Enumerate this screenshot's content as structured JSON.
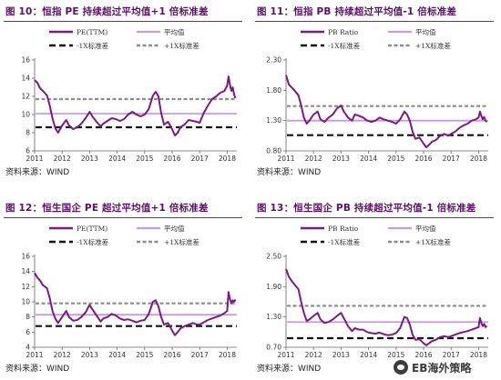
{
  "panels": [
    {
      "title": "图 10：恒指 PE 持续超过平均值+1 倍标准差",
      "source": "资料来源：WIND",
      "legend": {
        "series": "PE(TTM)",
        "mean": "平均值",
        "minus1sd": "-1X标准差",
        "plus1sd": "+1X标准差"
      }
    },
    {
      "title": "图 11：恒指 PB 持续超过平均值-1 倍标准差",
      "source": "资料来源：WIND",
      "legend": {
        "series": "PB Ratio",
        "mean": "平均值",
        "minus1sd": "-1X标准差",
        "plus1sd": "+1X标准差"
      }
    },
    {
      "title": "图 12：恒生国企 PE 超过平均值+1 倍标准差",
      "source": "资料来源：WIND",
      "legend": {
        "series": "PE(TTM)",
        "mean": "平均值",
        "minus1sd": "-1X标准差",
        "plus1sd": "+1X标准差"
      }
    },
    {
      "title": "图 13：恒生国企 PB 持续超过平均值-1 倍标准差",
      "source": "资料来源：WIND",
      "legend": {
        "series": "PB Ratio",
        "mean": "平均值",
        "minus1sd": "-1X标准差",
        "plus1sd": "+1X标准差"
      }
    }
  ],
  "watermark": "EB海外策略",
  "colors": {
    "series": "#7b1a80",
    "mean": "#c89be0",
    "minus1sd": "#111111",
    "plus1sd": "#8c8c8c",
    "title": "#5a1163"
  },
  "chart_data": [
    {
      "type": "line",
      "title": "",
      "x_ticks": [
        "2011",
        "2012",
        "2013",
        "2014",
        "2015",
        "2016",
        "2017",
        "2018"
      ],
      "xlim": [
        2011.0,
        2018.35
      ],
      "ylim": [
        6,
        16
      ],
      "y_ticks": [
        6,
        8,
        10,
        12,
        14,
        16
      ],
      "mean": 10.1,
      "minus1sd": 8.6,
      "plus1sd": 11.7,
      "series": [
        {
          "name": "PE(TTM)",
          "x": [
            2011.0,
            2011.1,
            2011.2,
            2011.3,
            2011.45,
            2011.55,
            2011.65,
            2011.75,
            2011.85,
            2012.0,
            2012.15,
            2012.25,
            2012.4,
            2012.55,
            2012.7,
            2012.85,
            2013.0,
            2013.1,
            2013.25,
            2013.4,
            2013.5,
            2013.65,
            2013.8,
            2013.95,
            2014.1,
            2014.25,
            2014.4,
            2014.55,
            2014.7,
            2014.85,
            2015.0,
            2015.15,
            2015.3,
            2015.4,
            2015.5,
            2015.6,
            2015.7,
            2015.85,
            2016.0,
            2016.1,
            2016.2,
            2016.3,
            2016.45,
            2016.6,
            2016.75,
            2016.9,
            2017.0,
            2017.15,
            2017.3,
            2017.45,
            2017.6,
            2017.75,
            2017.9,
            2018.0,
            2018.05,
            2018.1,
            2018.15,
            2018.2,
            2018.25,
            2018.3
          ],
          "y": [
            13.8,
            13.5,
            12.9,
            12.6,
            12.1,
            11.0,
            9.6,
            8.5,
            8.0,
            8.8,
            9.4,
            8.8,
            8.4,
            8.6,
            9.0,
            9.6,
            10.3,
            9.8,
            9.2,
            8.7,
            9.0,
            9.3,
            9.6,
            9.5,
            9.3,
            9.5,
            10.0,
            10.3,
            10.0,
            9.8,
            10.0,
            10.6,
            12.1,
            12.5,
            12.0,
            10.2,
            8.9,
            9.2,
            8.4,
            7.7,
            8.0,
            8.6,
            8.9,
            9.4,
            9.3,
            9.2,
            9.1,
            10.2,
            11.0,
            11.7,
            12.0,
            12.4,
            12.6,
            13.2,
            14.2,
            13.3,
            12.6,
            13.0,
            12.2,
            11.8
          ]
        }
      ]
    },
    {
      "type": "line",
      "title": "",
      "x_ticks": [
        "2011",
        "2012",
        "2013",
        "2014",
        "2015",
        "2016",
        "2017",
        "2018"
      ],
      "xlim": [
        2011.0,
        2018.35
      ],
      "ylim": [
        0.8,
        2.3
      ],
      "y_ticks": [
        0.8,
        1.3,
        1.8,
        2.3
      ],
      "y_tick_labels": [
        "0.80",
        "1.30",
        "1.80",
        "2.30"
      ],
      "mean": 1.3,
      "minus1sd": 1.06,
      "plus1sd": 1.54,
      "series": [
        {
          "name": "PB Ratio",
          "x": [
            2011.0,
            2011.1,
            2011.2,
            2011.3,
            2011.45,
            2011.55,
            2011.65,
            2011.75,
            2011.85,
            2012.0,
            2012.15,
            2012.25,
            2012.4,
            2012.55,
            2012.7,
            2012.85,
            2013.0,
            2013.1,
            2013.25,
            2013.4,
            2013.5,
            2013.65,
            2013.8,
            2013.95,
            2014.1,
            2014.25,
            2014.4,
            2014.55,
            2014.7,
            2014.85,
            2015.0,
            2015.15,
            2015.3,
            2015.4,
            2015.5,
            2015.6,
            2015.7,
            2015.85,
            2016.0,
            2016.1,
            2016.2,
            2016.3,
            2016.45,
            2016.6,
            2016.75,
            2016.9,
            2017.0,
            2017.15,
            2017.3,
            2017.45,
            2017.6,
            2017.75,
            2017.9,
            2018.0,
            2018.05,
            2018.1,
            2018.15,
            2018.2,
            2018.25,
            2018.3
          ],
          "y": [
            2.05,
            1.9,
            1.85,
            1.8,
            1.72,
            1.55,
            1.35,
            1.25,
            1.3,
            1.4,
            1.45,
            1.32,
            1.28,
            1.35,
            1.4,
            1.5,
            1.55,
            1.45,
            1.35,
            1.3,
            1.4,
            1.38,
            1.35,
            1.3,
            1.28,
            1.3,
            1.35,
            1.32,
            1.3,
            1.28,
            1.25,
            1.32,
            1.45,
            1.4,
            1.3,
            1.12,
            1.0,
            1.02,
            0.92,
            0.86,
            0.9,
            0.95,
            0.98,
            1.05,
            1.08,
            1.05,
            1.08,
            1.12,
            1.18,
            1.22,
            1.25,
            1.3,
            1.32,
            1.35,
            1.45,
            1.38,
            1.32,
            1.36,
            1.3,
            1.28
          ]
        }
      ]
    },
    {
      "type": "line",
      "title": "",
      "x_ticks": [
        "2011",
        "2012",
        "2013",
        "2014",
        "2015",
        "2016",
        "2017",
        "2018"
      ],
      "xlim": [
        2011.0,
        2018.35
      ],
      "ylim": [
        4,
        16
      ],
      "y_ticks": [
        4,
        6,
        8,
        10,
        12,
        14,
        16
      ],
      "mean": 8.3,
      "minus1sd": 6.8,
      "plus1sd": 9.8,
      "series": [
        {
          "name": "PE(TTM)",
          "x": [
            2011.0,
            2011.1,
            2011.2,
            2011.3,
            2011.45,
            2011.55,
            2011.65,
            2011.75,
            2011.85,
            2012.0,
            2012.15,
            2012.25,
            2012.4,
            2012.55,
            2012.7,
            2012.85,
            2013.0,
            2013.1,
            2013.25,
            2013.4,
            2013.5,
            2013.65,
            2013.8,
            2013.95,
            2014.1,
            2014.25,
            2014.4,
            2014.55,
            2014.7,
            2014.85,
            2015.0,
            2015.15,
            2015.3,
            2015.4,
            2015.5,
            2015.6,
            2015.7,
            2015.85,
            2016.0,
            2016.1,
            2016.2,
            2016.3,
            2016.45,
            2016.6,
            2016.75,
            2016.9,
            2017.0,
            2017.15,
            2017.3,
            2017.45,
            2017.6,
            2017.75,
            2017.9,
            2018.0,
            2018.05,
            2018.1,
            2018.15,
            2018.2,
            2018.25,
            2018.3
          ],
          "y": [
            13.8,
            13.2,
            12.8,
            12.2,
            11.8,
            10.5,
            8.8,
            7.8,
            7.2,
            8.0,
            8.8,
            8.0,
            7.5,
            7.6,
            8.0,
            8.6,
            9.6,
            9.0,
            8.2,
            7.4,
            7.8,
            8.0,
            8.4,
            8.2,
            7.8,
            7.6,
            7.7,
            7.5,
            7.3,
            7.5,
            7.6,
            8.4,
            10.0,
            10.2,
            9.4,
            8.0,
            7.0,
            7.2,
            6.2,
            5.6,
            6.0,
            6.5,
            6.8,
            7.0,
            7.2,
            7.0,
            7.0,
            7.3,
            7.6,
            7.8,
            8.0,
            8.2,
            8.5,
            8.8,
            11.3,
            10.4,
            9.8,
            10.2,
            10.0,
            10.3
          ]
        }
      ]
    },
    {
      "type": "line",
      "title": "",
      "x_ticks": [
        "2011",
        "2012",
        "2013",
        "2014",
        "2015",
        "2016",
        "2017",
        "2018"
      ],
      "xlim": [
        2011.0,
        2018.35
      ],
      "ylim": [
        0.7,
        2.5
      ],
      "y_ticks": [
        0.7,
        1.3,
        1.9,
        2.5
      ],
      "y_tick_labels": [
        "0.70",
        "1.30",
        "1.90",
        "2.50"
      ],
      "mean": 1.2,
      "minus1sd": 0.88,
      "plus1sd": 1.52,
      "series": [
        {
          "name": "PB Ratio",
          "x": [
            2011.0,
            2011.1,
            2011.2,
            2011.3,
            2011.45,
            2011.55,
            2011.65,
            2011.75,
            2011.85,
            2012.0,
            2012.15,
            2012.25,
            2012.4,
            2012.55,
            2012.7,
            2012.85,
            2013.0,
            2013.1,
            2013.25,
            2013.4,
            2013.5,
            2013.65,
            2013.8,
            2013.95,
            2014.1,
            2014.25,
            2014.4,
            2014.55,
            2014.7,
            2014.85,
            2015.0,
            2015.15,
            2015.3,
            2015.4,
            2015.5,
            2015.6,
            2015.7,
            2015.85,
            2016.0,
            2016.1,
            2016.2,
            2016.3,
            2016.45,
            2016.6,
            2016.75,
            2016.9,
            2017.0,
            2017.15,
            2017.3,
            2017.45,
            2017.6,
            2017.75,
            2017.9,
            2018.0,
            2018.05,
            2018.1,
            2018.15,
            2018.2,
            2018.25,
            2018.3
          ],
          "y": [
            2.25,
            2.1,
            2.02,
            1.95,
            1.85,
            1.6,
            1.38,
            1.22,
            1.25,
            1.32,
            1.38,
            1.25,
            1.18,
            1.2,
            1.25,
            1.32,
            1.38,
            1.28,
            1.12,
            1.02,
            1.08,
            1.05,
            1.05,
            1.0,
            0.98,
            0.97,
            0.99,
            0.96,
            0.94,
            0.95,
            0.98,
            1.08,
            1.3,
            1.28,
            1.15,
            0.95,
            0.85,
            0.86,
            0.78,
            0.74,
            0.78,
            0.82,
            0.85,
            0.9,
            0.92,
            0.9,
            0.92,
            0.95,
            0.98,
            1.0,
            1.02,
            1.05,
            1.08,
            1.1,
            1.28,
            1.18,
            1.12,
            1.16,
            1.1,
            1.12
          ]
        }
      ]
    }
  ]
}
